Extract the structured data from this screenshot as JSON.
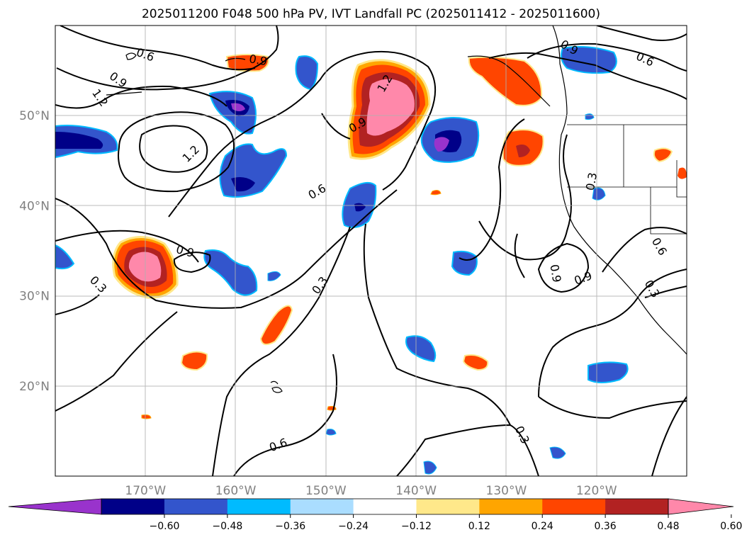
{
  "title": "2025011200 F048 500 hPa PV, IVT Landfall PC (2025011412 - 2025011600)",
  "map": {
    "type": "contour-map",
    "lat_range": [
      10,
      60
    ],
    "lon_range": [
      -180,
      -110
    ],
    "grid": true,
    "lat_ticks": [
      {
        "value": 20,
        "label": "20°N"
      },
      {
        "value": 30,
        "label": "30°N"
      },
      {
        "value": 40,
        "label": "40°N"
      },
      {
        "value": 50,
        "label": "50°N"
      }
    ],
    "lon_ticks": [
      {
        "value": -170,
        "label": "170°W"
      },
      {
        "value": -160,
        "label": "160°W"
      },
      {
        "value": -150,
        "label": "150°W"
      },
      {
        "value": -140,
        "label": "140°W"
      },
      {
        "value": -130,
        "label": "130°W"
      },
      {
        "value": -120,
        "label": "120°W"
      }
    ],
    "contour_labels": [
      {
        "text": "0.6",
        "lon": -170,
        "lat": 56.8,
        "rot": 20
      },
      {
        "text": "0.9",
        "lon": -173,
        "lat": 54.0,
        "rot": 35
      },
      {
        "text": "1.2",
        "lon": -175,
        "lat": 52.0,
        "rot": 55
      },
      {
        "text": "0.9",
        "lon": -157.5,
        "lat": 56.2,
        "rot": 10
      },
      {
        "text": "1.2",
        "lon": -165,
        "lat": 45.8,
        "rot": -45
      },
      {
        "text": "0.6",
        "lon": -151,
        "lat": 41.6,
        "rot": -30
      },
      {
        "text": "0.9",
        "lon": -146.5,
        "lat": 49.0,
        "rot": -30
      },
      {
        "text": "1.2",
        "lon": -143.5,
        "lat": 53.6,
        "rot": -60
      },
      {
        "text": "0.9",
        "lon": -165.6,
        "lat": 35.0,
        "rot": 15
      },
      {
        "text": "0.3",
        "lon": -175.2,
        "lat": 31.3,
        "rot": 45
      },
      {
        "text": "0.3",
        "lon": -150.7,
        "lat": 31.2,
        "rot": -55
      },
      {
        "text": "0.6",
        "lon": -155.3,
        "lat": 13.5,
        "rot": -20
      },
      {
        "text": "0.3",
        "lon": -128.2,
        "lat": 14.6,
        "rot": 65
      },
      {
        "text": "0.9",
        "lon": -123,
        "lat": 57.6,
        "rot": 30
      },
      {
        "text": "0.6",
        "lon": -114.6,
        "lat": 56.3,
        "rot": 25
      },
      {
        "text": "0.3",
        "lon": -120.6,
        "lat": 42.7,
        "rot": -80
      },
      {
        "text": "0.9",
        "lon": -121.5,
        "lat": 32.0,
        "rot": -20
      },
      {
        "text": "0.9",
        "lon": -124.5,
        "lat": 32.5,
        "rot": 80
      },
      {
        "text": "0.6",
        "lon": -113,
        "lat": 35.5,
        "rot": 60
      },
      {
        "text": "0.3",
        "lon": -113.8,
        "lat": 30.8,
        "rot": 60
      }
    ]
  },
  "colorbar": {
    "ticks": [
      "-0.60",
      "-0.48",
      "-0.36",
      "-0.24",
      "-0.12",
      "0.12",
      "0.24",
      "0.36",
      "0.48",
      "0.60"
    ],
    "colors": [
      "#9933cc",
      "#000088",
      "#3355cc",
      "#00bbff",
      "#aaddff",
      "#ffffff",
      "#ffe88a",
      "#ffa500",
      "#ff4500",
      "#b22222",
      "#ff88aa"
    ]
  }
}
